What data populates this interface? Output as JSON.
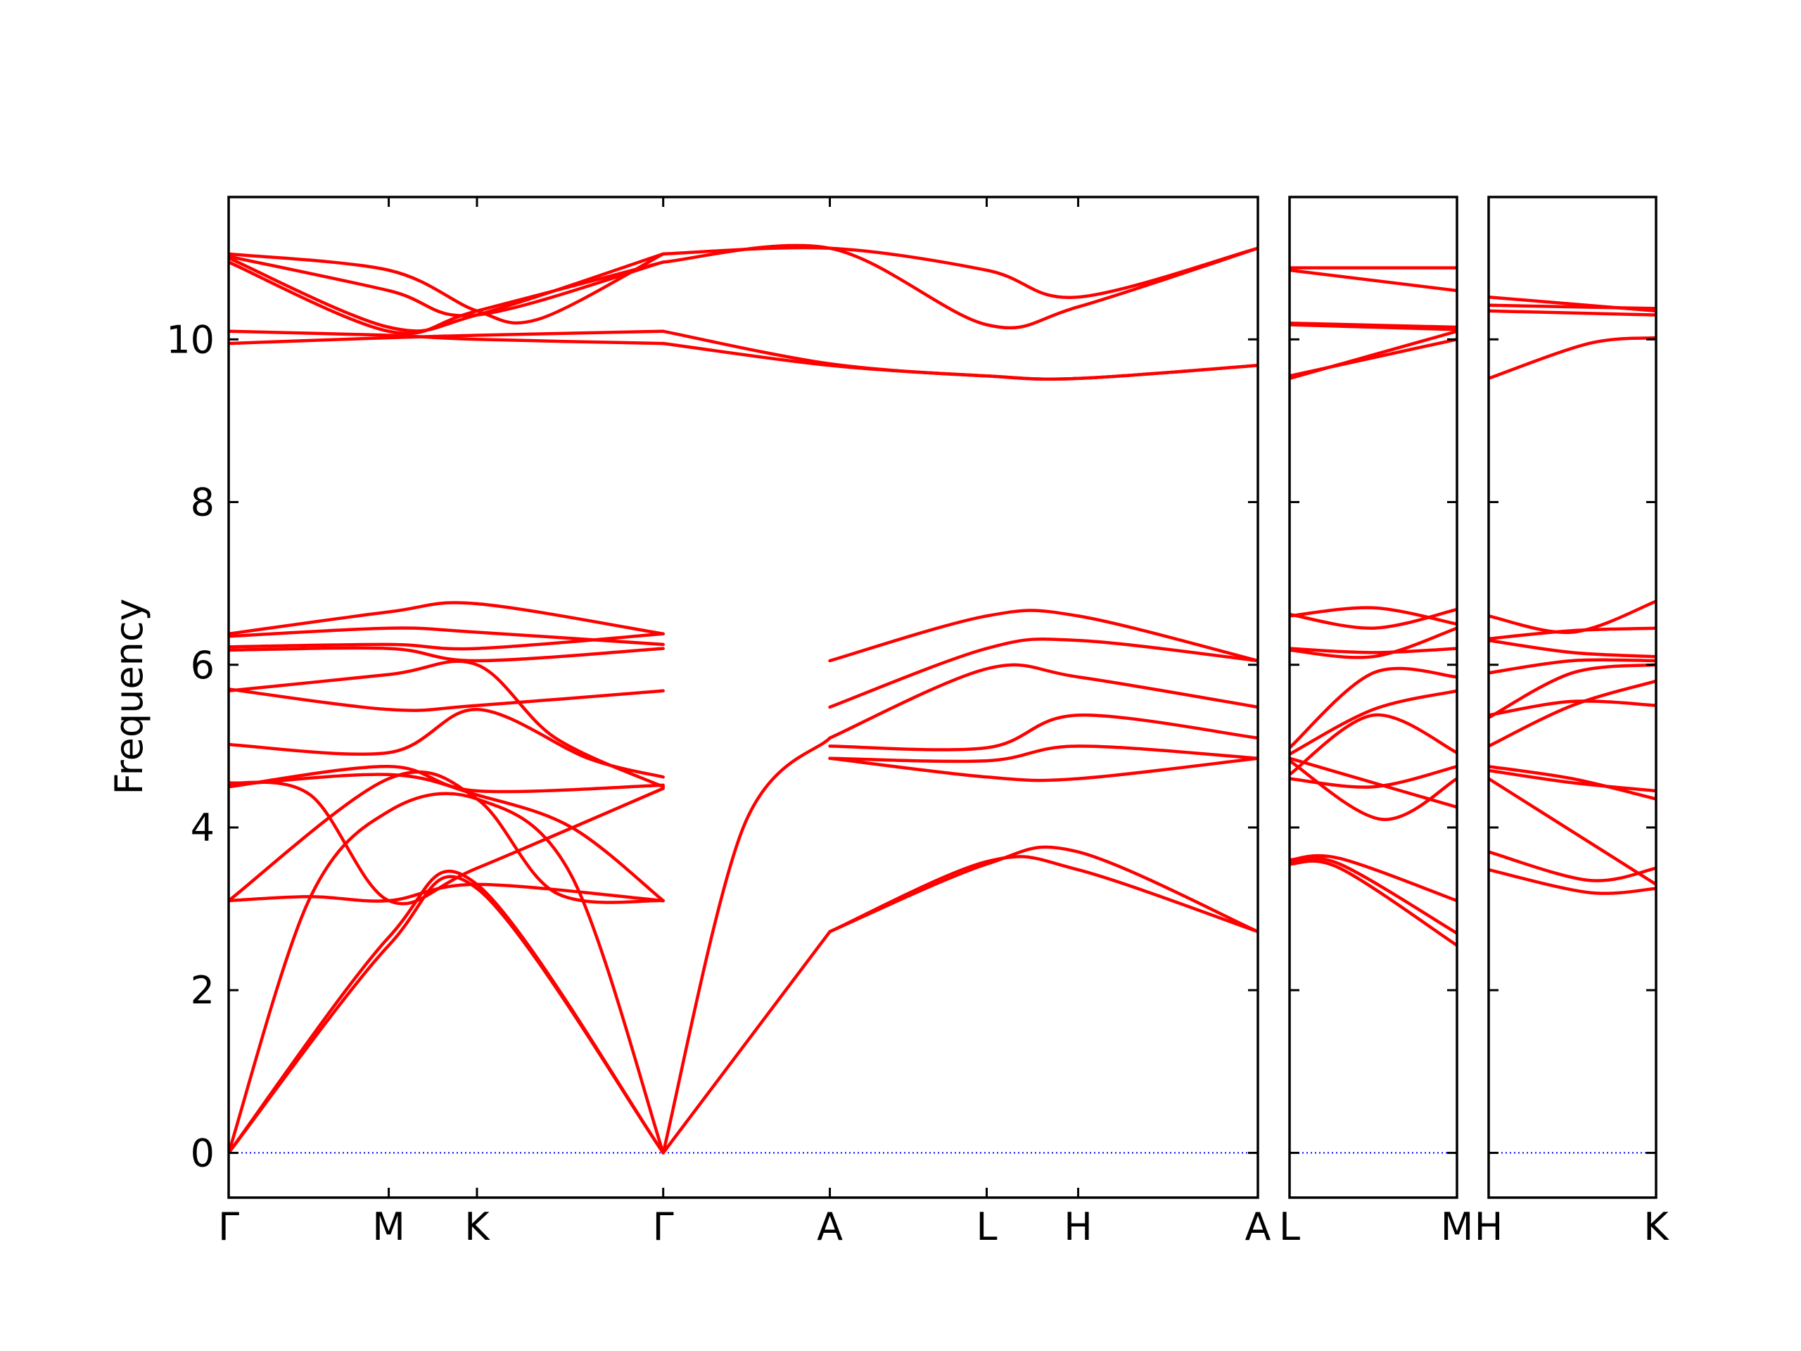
{
  "chart_data": {
    "type": "line",
    "title": "",
    "ylabel": "Frequency",
    "ylim": [
      -0.55,
      11.75
    ],
    "yticks": [
      0,
      2,
      4,
      6,
      8,
      10
    ],
    "grid": false,
    "line_color": "#ff0000",
    "zero_line_color": "#0000ff",
    "panels": [
      {
        "name": "panel-1",
        "xlim": [
          0,
          6.3
        ],
        "xticks": [
          {
            "label": "Γ",
            "x": 0.0
          },
          {
            "label": "M",
            "x": 0.98
          },
          {
            "label": "K",
            "x": 1.52
          },
          {
            "label": "Γ",
            "x": 2.66
          },
          {
            "label": "A",
            "x": 3.68
          },
          {
            "label": "L",
            "x": 4.64
          },
          {
            "label": "H",
            "x": 5.2
          },
          {
            "label": "A",
            "x": 6.3
          }
        ],
        "series": [
          {
            "x": [
              0,
              0.98,
              1.52,
              2.66
            ],
            "y": [
              0,
              2.55,
              3.25,
              0
            ]
          },
          {
            "x": [
              0,
              0.98,
              1.52,
              2.66
            ],
            "y": [
              0,
              2.65,
              3.3,
              0
            ]
          },
          {
            "x": [
              0,
              0.49,
              0.98,
              1.52,
              2.1,
              2.66
            ],
            "y": [
              0,
              3.1,
              4.2,
              4.35,
              3.4,
              0
            ]
          },
          {
            "x": [
              2.66,
              3.68
            ],
            "y": [
              0,
              2.72
            ]
          },
          {
            "x": [
              2.66,
              3.15,
              3.68
            ],
            "y": [
              0,
              4.0,
              5.1
            ]
          },
          {
            "x": [
              0,
              0.98,
              1.52,
              2.0,
              2.66
            ],
            "y": [
              3.1,
              4.6,
              4.35,
              3.2,
              3.1
            ]
          },
          {
            "x": [
              0,
              0.5,
              0.98,
              1.52,
              2.66
            ],
            "y": [
              3.1,
              3.15,
              3.1,
              3.3,
              3.1
            ]
          },
          {
            "x": [
              0,
              0.98,
              1.52,
              2.66
            ],
            "y": [
              4.5,
              4.75,
              4.45,
              4.52
            ]
          },
          {
            "x": [
              0,
              0.98,
              1.52,
              2.1,
              2.66
            ],
            "y": [
              4.52,
              4.65,
              4.4,
              4.0,
              3.1
            ]
          },
          {
            "x": [
              0,
              0.5,
              0.98,
              1.52,
              2.66
            ],
            "y": [
              4.55,
              4.4,
              3.1,
              3.5,
              4.48
            ]
          },
          {
            "x": [
              0,
              0.98,
              1.52,
              2.2,
              2.66
            ],
            "y": [
              5.02,
              4.92,
              5.45,
              4.85,
              4.62
            ]
          },
          {
            "x": [
              0,
              0.98,
              1.52,
              2.0,
              2.66
            ],
            "y": [
              5.68,
              5.88,
              6.0,
              5.1,
              4.5
            ]
          },
          {
            "x": [
              0,
              0.98,
              1.52,
              2.66
            ],
            "y": [
              5.7,
              5.45,
              5.5,
              5.68
            ]
          },
          {
            "x": [
              0,
              0.98,
              1.52,
              2.66
            ],
            "y": [
              6.18,
              6.2,
              6.05,
              6.2
            ]
          },
          {
            "x": [
              0,
              0.98,
              1.52,
              2.66
            ],
            "y": [
              6.22,
              6.25,
              6.2,
              6.38
            ]
          },
          {
            "x": [
              0,
              0.98,
              1.52,
              2.66
            ],
            "y": [
              6.35,
              6.45,
              6.4,
              6.25
            ]
          },
          {
            "x": [
              0,
              0.98,
              1.52,
              2.66
            ],
            "y": [
              6.38,
              6.65,
              6.75,
              6.38
            ]
          },
          {
            "x": [
              0,
              0.98,
              1.52,
              2.66
            ],
            "y": [
              9.95,
              10.02,
              10.05,
              10.1
            ]
          },
          {
            "x": [
              0,
              0.98,
              1.52,
              2.66
            ],
            "y": [
              10.1,
              10.05,
              10.0,
              9.95
            ]
          },
          {
            "x": [
              0,
              0.98,
              1.52,
              2.66
            ],
            "y": [
              11.0,
              10.15,
              10.3,
              11.05
            ]
          },
          {
            "x": [
              0,
              0.98,
              1.52,
              2.66
            ],
            "y": [
              10.95,
              10.1,
              10.35,
              10.95
            ]
          },
          {
            "x": [
              0,
              0.98,
              1.52,
              1.9,
              2.66
            ],
            "y": [
              11.05,
              10.85,
              10.35,
              10.25,
              11.05
            ]
          },
          {
            "x": [
              0,
              0.98,
              1.52,
              2.66
            ],
            "y": [
              11.02,
              10.6,
              10.3,
              10.95
            ]
          },
          {
            "x": [
              3.68,
              4.64,
              5.2,
              6.3
            ],
            "y": [
              2.72,
              3.55,
              3.7,
              2.72
            ]
          },
          {
            "x": [
              3.68,
              4.64,
              5.2,
              6.3
            ],
            "y": [
              2.72,
              3.58,
              3.48,
              2.72
            ]
          },
          {
            "x": [
              3.68,
              4.64,
              5.2,
              6.3
            ],
            "y": [
              4.85,
              4.62,
              4.6,
              4.85
            ]
          },
          {
            "x": [
              3.68,
              4.64,
              5.2,
              6.3
            ],
            "y": [
              4.85,
              4.82,
              5.0,
              4.85
            ]
          },
          {
            "x": [
              3.68,
              4.64,
              5.2,
              6.3
            ],
            "y": [
              5.0,
              4.98,
              5.38,
              5.1
            ]
          },
          {
            "x": [
              3.68,
              4.64,
              5.2,
              6.3
            ],
            "y": [
              5.1,
              5.95,
              5.85,
              5.48
            ]
          },
          {
            "x": [
              3.68,
              4.64,
              5.2,
              6.3
            ],
            "y": [
              5.48,
              6.2,
              6.3,
              6.05
            ]
          },
          {
            "x": [
              3.68,
              4.64,
              5.2,
              6.3
            ],
            "y": [
              6.05,
              6.6,
              6.6,
              6.05
            ]
          },
          {
            "x": [
              2.66,
              3.68,
              4.64,
              5.2,
              6.3
            ],
            "y": [
              9.95,
              9.68,
              9.55,
              9.52,
              9.68
            ]
          },
          {
            "x": [
              2.66,
              3.68,
              4.64,
              5.2,
              6.3
            ],
            "y": [
              10.1,
              9.7,
              9.55,
              9.52,
              9.68
            ]
          },
          {
            "x": [
              2.66,
              3.68,
              4.64,
              5.2,
              6.3
            ],
            "y": [
              11.05,
              11.12,
              10.85,
              10.52,
              11.12
            ]
          },
          {
            "x": [
              2.66,
              3.68,
              4.64,
              5.2,
              6.3
            ],
            "y": [
              10.95,
              11.12,
              10.18,
              10.4,
              11.12
            ]
          }
        ]
      },
      {
        "name": "panel-2",
        "xlim": [
          0,
          1
        ],
        "xticks": [
          {
            "label": "L",
            "x": 0.0
          },
          {
            "label": "M",
            "x": 1.0
          }
        ],
        "series": [
          {
            "x": [
              0,
              0.3,
              1
            ],
            "y": [
              3.55,
              3.5,
              2.55
            ]
          },
          {
            "x": [
              0,
              0.3,
              1
            ],
            "y": [
              3.58,
              3.55,
              2.7
            ]
          },
          {
            "x": [
              0,
              0.3,
              1
            ],
            "y": [
              3.6,
              3.62,
              3.1
            ]
          },
          {
            "x": [
              0,
              0.55,
              1
            ],
            "y": [
              4.82,
              4.1,
              4.6
            ]
          },
          {
            "x": [
              0,
              0.5,
              1
            ],
            "y": [
              4.85,
              4.55,
              4.25
            ]
          },
          {
            "x": [
              0,
              0.5,
              1
            ],
            "y": [
              4.6,
              4.5,
              4.75
            ]
          },
          {
            "x": [
              0,
              0.5,
              1
            ],
            "y": [
              4.65,
              5.38,
              4.92
            ]
          },
          {
            "x": [
              0,
              0.5,
              1
            ],
            "y": [
              4.98,
              5.9,
              5.85
            ]
          },
          {
            "x": [
              0,
              0.5,
              1
            ],
            "y": [
              4.9,
              5.45,
              5.68
            ]
          },
          {
            "x": [
              0,
              0.5,
              1
            ],
            "y": [
              6.2,
              6.15,
              6.2
            ]
          },
          {
            "x": [
              0,
              0.5,
              1
            ],
            "y": [
              6.18,
              6.1,
              6.45
            ]
          },
          {
            "x": [
              0,
              0.5,
              1
            ],
            "y": [
              6.62,
              6.45,
              6.68
            ]
          },
          {
            "x": [
              0,
              0.5,
              1
            ],
            "y": [
              6.6,
              6.7,
              6.5
            ]
          },
          {
            "x": [
              0,
              1
            ],
            "y": [
              9.55,
              10.0
            ]
          },
          {
            "x": [
              0,
              1
            ],
            "y": [
              9.52,
              10.1
            ]
          },
          {
            "x": [
              0,
              1
            ],
            "y": [
              10.18,
              10.12
            ]
          },
          {
            "x": [
              0,
              1
            ],
            "y": [
              10.2,
              10.15
            ]
          },
          {
            "x": [
              0,
              1
            ],
            "y": [
              10.85,
              10.6
            ]
          },
          {
            "x": [
              0,
              1
            ],
            "y": [
              10.88,
              10.88
            ]
          }
        ]
      },
      {
        "name": "panel-3",
        "xlim": [
          0,
          1
        ],
        "xticks": [
          {
            "label": "H",
            "x": 0.0
          },
          {
            "label": "K",
            "x": 1.0
          }
        ],
        "series": [
          {
            "x": [
              0,
              0.6,
              1
            ],
            "y": [
              3.48,
              3.2,
              3.25
            ]
          },
          {
            "x": [
              0,
              0.6,
              1
            ],
            "y": [
              3.7,
              3.35,
              3.5
            ]
          },
          {
            "x": [
              0,
              1
            ],
            "y": [
              4.6,
              3.3
            ]
          },
          {
            "x": [
              0,
              0.5,
              1
            ],
            "y": [
              4.75,
              4.6,
              4.35
            ]
          },
          {
            "x": [
              0,
              0.5,
              1
            ],
            "y": [
              4.7,
              4.55,
              4.45
            ]
          },
          {
            "x": [
              0,
              0.5,
              1
            ],
            "y": [
              5.0,
              5.5,
              5.8
            ]
          },
          {
            "x": [
              0,
              0.5,
              1
            ],
            "y": [
              5.38,
              5.55,
              5.5
            ]
          },
          {
            "x": [
              0,
              0.5,
              1
            ],
            "y": [
              5.35,
              5.9,
              6.0
            ]
          },
          {
            "x": [
              0,
              0.5,
              1
            ],
            "y": [
              5.9,
              6.05,
              6.05
            ]
          },
          {
            "x": [
              0,
              0.5,
              1
            ],
            "y": [
              6.3,
              6.15,
              6.1
            ]
          },
          {
            "x": [
              0,
              0.5,
              1
            ],
            "y": [
              6.32,
              6.42,
              6.45
            ]
          },
          {
            "x": [
              0,
              0.5,
              1
            ],
            "y": [
              6.6,
              6.4,
              6.78
            ]
          },
          {
            "x": [
              0,
              0.6,
              1
            ],
            "y": [
              9.52,
              9.95,
              10.02
            ]
          },
          {
            "x": [
              0,
              1
            ],
            "y": [
              10.35,
              10.3
            ]
          },
          {
            "x": [
              0,
              1
            ],
            "y": [
              10.42,
              10.38
            ]
          },
          {
            "x": [
              0,
              1
            ],
            "y": [
              10.52,
              10.35
            ]
          }
        ]
      }
    ]
  }
}
